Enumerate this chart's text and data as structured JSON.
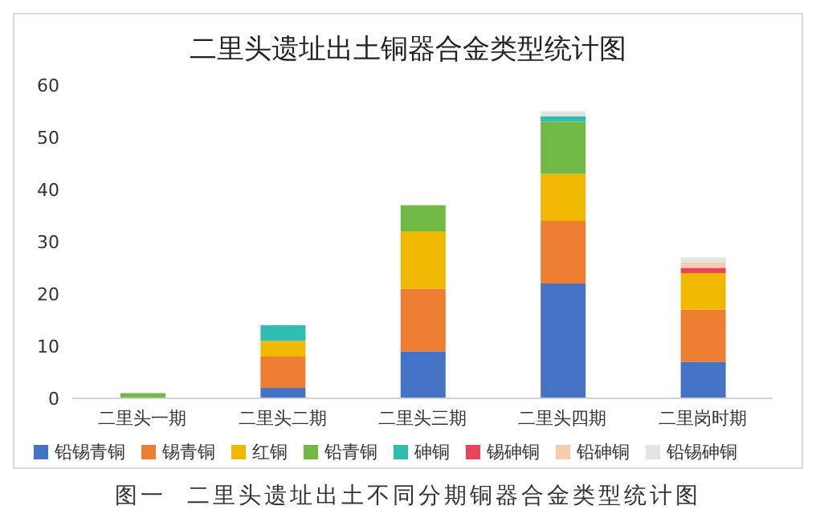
{
  "chart_data": {
    "type": "bar",
    "title": "二里头遗址出土铜器合金类型统计图",
    "categories": [
      "二里头一期",
      "二里头二期",
      "二里头三期",
      "二里头四期",
      "二里岗时期"
    ],
    "stacked": true,
    "series": [
      {
        "name": "铅锡青铜",
        "color": "#4472c4",
        "values": [
          0,
          2,
          9,
          22,
          7
        ]
      },
      {
        "name": "锡青铜",
        "color": "#ed7d31",
        "values": [
          0,
          6,
          12,
          12,
          10
        ]
      },
      {
        "name": "红铜",
        "color": "#f0b800",
        "values": [
          0,
          3,
          11,
          9,
          7
        ]
      },
      {
        "name": "铅青铜",
        "color": "#70b944",
        "values": [
          1,
          0,
          5,
          10,
          0
        ]
      },
      {
        "name": "砷铜",
        "color": "#2ebdb0",
        "values": [
          0,
          3,
          0,
          1,
          0
        ]
      },
      {
        "name": "锡砷铜",
        "color": "#e8455a",
        "values": [
          0,
          0,
          0,
          0,
          1
        ]
      },
      {
        "name": "铅砷铜",
        "color": "#f7cbb0",
        "values": [
          0,
          0,
          0,
          0,
          1
        ]
      },
      {
        "name": "铅锡砷铜",
        "color": "#e3e3e3",
        "values": [
          0,
          0,
          0,
          1,
          1
        ]
      }
    ],
    "ylim": [
      0,
      60
    ],
    "yticks": [
      0,
      10,
      20,
      30,
      40,
      50,
      60
    ],
    "grid": false,
    "legend": "bottom",
    "annotations": [
      "图一  二里头遗址出土不同分期铜器合金类型统计图"
    ]
  }
}
